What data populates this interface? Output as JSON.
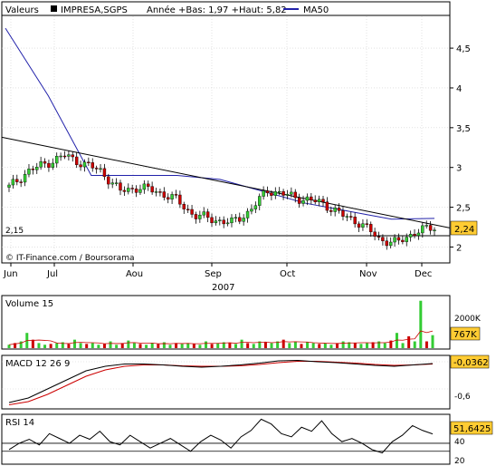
{
  "header": {
    "series_label": "Valeurs",
    "ticker": "IMPRESA,SGPS",
    "range_text": "Année +Bas: 1,97 +Haut: 5,82",
    "ma_label": "MA50"
  },
  "colors": {
    "background": "#ffffff",
    "up_candle": "#33cc33",
    "down_candle": "#cc0000",
    "ma_line": "#2222aa",
    "trend_line": "#000000",
    "price_badge": "#ffcc33",
    "volume_bar_green": "#33cc33",
    "volume_bar_red": "#cc0000",
    "macd_line": "#000000",
    "signal_line": "#cc0000"
  },
  "main_chart": {
    "copyright": "© IT-Finance.com / Boursorama",
    "reference_value": "2,15",
    "last_price": "2,24",
    "y_ticks": [
      "4,5",
      "4",
      "3,5",
      "3",
      "2,5",
      "2"
    ],
    "x_ticks": [
      "Jun",
      "Jul",
      "Aou",
      "Sep",
      "Oct",
      "Nov",
      "Dec"
    ],
    "year_label": "2007"
  },
  "volume_panel": {
    "title": "Volume 15",
    "y_tick": "2000K",
    "last_value": "767K"
  },
  "macd_panel": {
    "title": "MACD 12 26 9",
    "last_value": "-0,0362",
    "y_tick": "-0,6"
  },
  "rsi_panel": {
    "title": "RSI 14",
    "last_value": "51,6425",
    "y_ticks": [
      "40",
      "20"
    ]
  },
  "chart_data": [
    {
      "type": "line",
      "name": "price",
      "x": [
        "Jun",
        "Jun",
        "Jul",
        "Jul",
        "Jul",
        "Jul",
        "Aou",
        "Aou",
        "Aou",
        "Aou",
        "Sep",
        "Sep",
        "Sep",
        "Sep",
        "Oct",
        "Oct",
        "Oct",
        "Oct",
        "Nov",
        "Nov",
        "Nov",
        "Nov",
        "Dec",
        "Dec"
      ],
      "values": [
        2.75,
        2.95,
        3.05,
        3.15,
        3.05,
        2.95,
        2.7,
        2.75,
        2.7,
        2.6,
        2.4,
        2.35,
        2.3,
        2.45,
        2.72,
        2.65,
        2.6,
        2.55,
        2.4,
        2.3,
        2.1,
        2.05,
        2.2,
        2.24
      ],
      "ylim": [
        1.8,
        4.9
      ]
    },
    {
      "type": "line",
      "name": "MA50",
      "values": [
        4.75,
        3.9,
        2.9,
        2.9,
        2.9,
        2.85,
        2.7,
        2.55,
        2.45,
        2.35,
        2.36
      ],
      "ylim": [
        1.8,
        4.9
      ]
    },
    {
      "type": "line",
      "name": "trend",
      "values": [
        3.38,
        2.24
      ],
      "ylim": [
        1.8,
        4.9
      ]
    },
    {
      "type": "bar",
      "name": "Volume 15",
      "values": [
        200,
        300,
        400,
        900,
        500,
        300,
        200,
        250,
        300,
        350,
        250,
        500,
        300,
        250,
        300,
        200,
        250,
        400,
        200,
        300,
        450,
        300,
        250,
        200,
        300,
        250,
        350,
        200,
        300,
        250,
        300,
        250,
        200,
        400,
        250,
        300,
        350,
        300,
        250,
        500,
        300,
        250,
        400,
        350,
        300,
        400,
        500,
        300,
        400,
        250,
        350,
        300,
        250,
        300,
        200,
        300,
        400,
        350,
        300,
        250,
        300,
        350,
        400,
        300,
        450,
        900,
        300,
        700,
        400,
        2800,
        400,
        767
      ],
      "ylim": [
        0,
        3000
      ]
    },
    {
      "type": "line",
      "name": "MACD 12 26 9",
      "values": [
        -0.9,
        -0.8,
        -0.6,
        -0.4,
        -0.2,
        -0.1,
        -0.05,
        -0.05,
        -0.07,
        -0.1,
        -0.12,
        -0.1,
        -0.07,
        -0.03,
        0.02,
        0.03,
        0.0,
        -0.02,
        -0.05,
        -0.08,
        -0.1,
        -0.07,
        -0.04
      ],
      "signal": [
        -0.95,
        -0.88,
        -0.72,
        -0.52,
        -0.32,
        -0.18,
        -0.1,
        -0.07,
        -0.07,
        -0.09,
        -0.1,
        -0.1,
        -0.09,
        -0.06,
        -0.02,
        0.01,
        0.01,
        -0.01,
        -0.03,
        -0.06,
        -0.08,
        -0.07,
        -0.05
      ],
      "ylim": [
        -1.0,
        0.1
      ]
    },
    {
      "type": "line",
      "name": "RSI 14",
      "values": [
        32,
        40,
        45,
        38,
        52,
        46,
        40,
        50,
        45,
        55,
        42,
        38,
        50,
        42,
        34,
        40,
        46,
        38,
        30,
        42,
        50,
        44,
        34,
        48,
        56,
        70,
        64,
        52,
        48,
        60,
        55,
        68,
        52,
        42,
        46,
        40,
        32,
        28,
        42,
        50,
        62,
        56,
        51.6425
      ],
      "ylim": [
        15,
        75
      ]
    }
  ]
}
